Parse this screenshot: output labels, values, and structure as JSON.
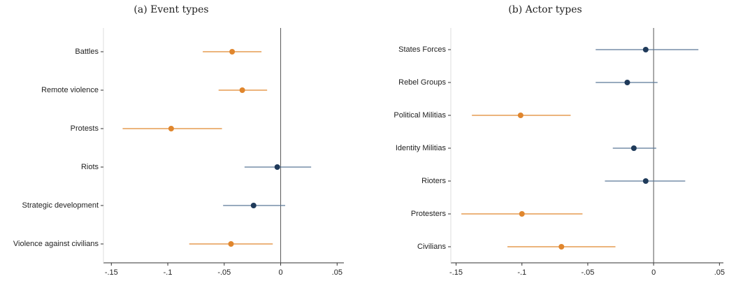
{
  "chart_data": [
    {
      "type": "errorbar",
      "title": "(a) Event types",
      "categories": [
        "Battles",
        "Remote violence",
        "Protests",
        "Riots",
        "Strategic development",
        "Violence against civilians"
      ],
      "values": [
        -0.043,
        -0.034,
        -0.097,
        -0.003,
        -0.024,
        -0.044
      ],
      "lower": [
        -0.069,
        -0.055,
        -0.14,
        -0.032,
        -0.051,
        -0.081
      ],
      "upper": [
        -0.017,
        -0.012,
        -0.052,
        0.027,
        0.004,
        -0.007
      ],
      "colors": [
        "#e0862d",
        "#e0862d",
        "#e0862d",
        "#1f3a5a",
        "#1f3a5a",
        "#e0862d"
      ],
      "xlim": [
        -0.157,
        0.056
      ],
      "xticks": [
        {
          "value": -0.15,
          "label": "-.15"
        },
        {
          "value": -0.1,
          "label": "-.1"
        },
        {
          "value": -0.05,
          "label": "-.05"
        },
        0,
        {
          "value": 0.05,
          "label": ".05"
        }
      ]
    },
    {
      "type": "errorbar",
      "title": "(b) Actor types",
      "categories": [
        "States Forces",
        "Rebel Groups",
        "Political Militias",
        "Identity Militias",
        "Rioters",
        "Protesters",
        "Civilians"
      ],
      "values": [
        -0.006,
        -0.02,
        -0.101,
        -0.015,
        -0.006,
        -0.1,
        -0.07
      ],
      "lower": [
        -0.044,
        -0.044,
        -0.138,
        -0.031,
        -0.037,
        -0.146,
        -0.111
      ],
      "upper": [
        0.034,
        0.003,
        -0.063,
        0.002,
        0.024,
        -0.054,
        -0.029
      ],
      "colors": [
        "#1f3a5a",
        "#1f3a5a",
        "#e0862d",
        "#1f3a5a",
        "#1f3a5a",
        "#e0862d",
        "#e0862d"
      ],
      "xlim": [
        -0.154,
        0.053
      ],
      "xticks": [
        {
          "value": -0.15,
          "label": "-.15"
        },
        {
          "value": -0.1,
          "label": "-.1"
        },
        {
          "value": -0.05,
          "label": "-.05"
        },
        0,
        {
          "value": 0.05,
          "label": ".05"
        }
      ]
    }
  ]
}
